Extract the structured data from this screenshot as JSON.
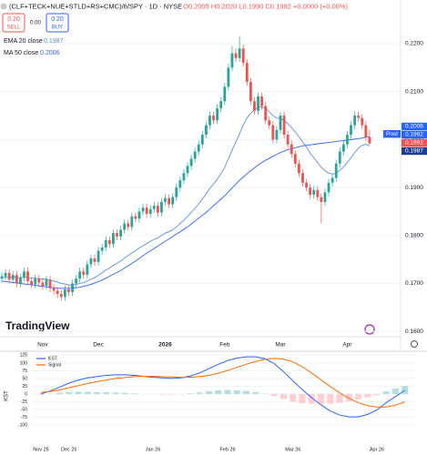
{
  "header": {
    "title": "(CLF+TECK+NUE+STLD+RS+CMC)/6/SPY · 1D · NYSE",
    "ohlc": "O0.2005 H0.2020 L0.1990 C0.1992 +0.0000 (+0.00%)",
    "sell_price": "0.20",
    "sell_label": "SELL",
    "spread": "0.00",
    "buy_price": "0.20",
    "buy_label": "BUY",
    "watermark": "TradingView",
    "price_badge": "Post"
  },
  "chart_data": [
    {
      "type": "candlestick",
      "categories": [
        null,
        null,
        null,
        null,
        null,
        null,
        null,
        null,
        null,
        null,
        null,
        "Nov",
        null,
        null,
        null,
        null,
        null,
        null,
        null,
        null,
        null,
        null,
        null,
        null,
        null,
        null,
        "Dec",
        null,
        null,
        null,
        null,
        null,
        null,
        null,
        null,
        null,
        null,
        null,
        null,
        null,
        null,
        null,
        null,
        null,
        "2026",
        null,
        null,
        null,
        null,
        null,
        null,
        null,
        null,
        null,
        null,
        null,
        null,
        null,
        null,
        null,
        "Feb",
        null,
        null,
        null,
        null,
        null,
        null,
        null,
        null,
        null,
        null,
        null,
        null,
        null,
        null,
        "Mar",
        null,
        null,
        null,
        null,
        null,
        null,
        null,
        null,
        null,
        null,
        null,
        null,
        null,
        null,
        null,
        null,
        null,
        "Apr",
        null,
        null,
        null,
        null,
        null,
        null
      ],
      "open": [
        0.171,
        0.1715,
        0.1722,
        0.1708,
        0.1718,
        0.17,
        0.1712,
        0.1725,
        0.1705,
        0.1698,
        0.171,
        0.1702,
        0.1695,
        0.1708,
        0.169,
        0.1685,
        0.1678,
        0.1672,
        0.1688,
        0.1682,
        0.17,
        0.171,
        0.1725,
        0.1718,
        0.174,
        0.1752,
        0.1745,
        0.1768,
        0.1775,
        0.179,
        0.1782,
        0.1805,
        0.1798,
        0.1812,
        0.1825,
        0.1818,
        0.184,
        0.1835,
        0.185,
        0.1858,
        0.1845,
        0.1855,
        0.1862,
        0.1848,
        0.187,
        0.1878,
        0.1865,
        0.188,
        0.19,
        0.1915,
        0.193,
        0.1945,
        0.196,
        0.1975,
        0.199,
        0.201,
        0.203,
        0.205,
        0.204,
        0.2065,
        0.208,
        0.211,
        0.215,
        0.218,
        0.217,
        0.219,
        0.216,
        0.212,
        0.208,
        0.206,
        0.209,
        0.207,
        0.204,
        0.203,
        0.2,
        0.202,
        0.205,
        0.201,
        0.199,
        0.197,
        0.195,
        0.193,
        0.191,
        0.19,
        0.1885,
        0.1895,
        0.188,
        0.187,
        0.189,
        0.191,
        0.192,
        0.195,
        0.1975,
        0.199,
        0.201,
        0.203,
        0.205,
        0.2045,
        0.203,
        0.2005
      ],
      "high": [
        0.1723,
        0.173,
        0.173,
        0.1726,
        0.1726,
        0.172,
        0.1733,
        0.1733,
        0.1713,
        0.1718,
        0.1718,
        0.171,
        0.1716,
        0.1716,
        0.1698,
        0.1693,
        0.1686,
        0.1696,
        0.1696,
        0.1708,
        0.1718,
        0.1733,
        0.1733,
        0.1748,
        0.176,
        0.176,
        0.1776,
        0.1783,
        0.1798,
        0.1798,
        0.1813,
        0.1813,
        0.182,
        0.1833,
        0.1833,
        0.1848,
        0.1848,
        0.1858,
        0.1866,
        0.1866,
        0.1863,
        0.187,
        0.187,
        0.1878,
        0.1886,
        0.1886,
        0.1888,
        0.1908,
        0.1923,
        0.1938,
        0.1953,
        0.1968,
        0.1983,
        0.1998,
        0.2018,
        0.2038,
        0.2058,
        0.2058,
        0.2073,
        0.2088,
        0.2118,
        0.2158,
        0.2195,
        0.219,
        0.2215,
        0.2198,
        0.2168,
        0.2128,
        0.2088,
        0.2098,
        0.2098,
        0.2078,
        0.2048,
        0.2038,
        0.2028,
        0.2058,
        0.2058,
        0.2018,
        0.1998,
        0.1978,
        0.1958,
        0.1938,
        0.1918,
        0.1908,
        0.1903,
        0.1903,
        0.1888,
        0.1898,
        0.1918,
        0.1928,
        0.1958,
        0.1983,
        0.1998,
        0.2018,
        0.2038,
        0.206,
        0.2058,
        0.2053,
        0.2038,
        0.202
      ],
      "low": [
        0.1702,
        0.1707,
        0.17,
        0.17,
        0.1692,
        0.1692,
        0.1704,
        0.1697,
        0.169,
        0.169,
        0.1694,
        0.1687,
        0.1687,
        0.1682,
        0.1677,
        0.167,
        0.1664,
        0.1664,
        0.1674,
        0.1674,
        0.1692,
        0.1702,
        0.171,
        0.171,
        0.1732,
        0.1737,
        0.1737,
        0.176,
        0.1767,
        0.1774,
        0.1774,
        0.179,
        0.179,
        0.1804,
        0.181,
        0.181,
        0.1827,
        0.1827,
        0.1842,
        0.1837,
        0.1837,
        0.1847,
        0.184,
        0.184,
        0.1862,
        0.1857,
        0.1857,
        0.1872,
        0.1892,
        0.1907,
        0.1922,
        0.1937,
        0.1952,
        0.1967,
        0.1982,
        0.2002,
        0.2022,
        0.2032,
        0.2032,
        0.2057,
        0.2072,
        0.2102,
        0.2142,
        0.2162,
        0.2162,
        0.2152,
        0.2112,
        0.2072,
        0.2052,
        0.2052,
        0.2062,
        0.2032,
        0.2022,
        0.1992,
        0.1992,
        0.2012,
        0.2002,
        0.1982,
        0.1962,
        0.1942,
        0.1922,
        0.1902,
        0.1892,
        0.1877,
        0.1877,
        0.1872,
        0.1825,
        0.1862,
        0.1882,
        0.1902,
        0.1912,
        0.1942,
        0.1967,
        0.1982,
        0.2002,
        0.2022,
        0.2037,
        0.2022,
        0.1997,
        0.199
      ],
      "close": [
        0.1715,
        0.1722,
        0.1708,
        0.1718,
        0.17,
        0.1712,
        0.1725,
        0.1705,
        0.1698,
        0.171,
        0.1702,
        0.1695,
        0.1708,
        0.169,
        0.1685,
        0.1678,
        0.1672,
        0.1688,
        0.1682,
        0.17,
        0.171,
        0.1725,
        0.1718,
        0.174,
        0.1752,
        0.1745,
        0.1768,
        0.1775,
        0.179,
        0.1782,
        0.1805,
        0.1798,
        0.1812,
        0.1825,
        0.1818,
        0.184,
        0.1835,
        0.185,
        0.1858,
        0.1845,
        0.1855,
        0.1862,
        0.1848,
        0.187,
        0.1878,
        0.1865,
        0.188,
        0.19,
        0.1915,
        0.193,
        0.1945,
        0.196,
        0.1975,
        0.199,
        0.201,
        0.203,
        0.205,
        0.204,
        0.2065,
        0.208,
        0.211,
        0.215,
        0.218,
        0.217,
        0.219,
        0.216,
        0.212,
        0.208,
        0.206,
        0.209,
        0.207,
        0.204,
        0.203,
        0.2,
        0.202,
        0.205,
        0.201,
        0.199,
        0.197,
        0.195,
        0.193,
        0.191,
        0.19,
        0.1885,
        0.1895,
        0.188,
        0.187,
        0.189,
        0.191,
        0.192,
        0.195,
        0.1975,
        0.199,
        0.201,
        0.203,
        0.205,
        0.2045,
        0.203,
        0.2005,
        0.1992
      ],
      "up_color": "#26a69a",
      "down_color": "#ef5350",
      "series": [
        {
          "name": "EMA 20 close",
          "color": "#5b8fd8",
          "values": [
            0.1712,
            0.1713,
            0.1713,
            0.1714,
            0.1712,
            0.1712,
            0.1713,
            0.1712,
            0.1711,
            0.1711,
            0.171,
            0.1709,
            0.1709,
            0.1707,
            0.1705,
            0.1703,
            0.17,
            0.1699,
            0.1697,
            0.1697,
            0.1698,
            0.17,
            0.1702,
            0.1705,
            0.1709,
            0.1712,
            0.1717,
            0.1722,
            0.1728,
            0.1732,
            0.1738,
            0.1742,
            0.1747,
            0.1753,
            0.1758,
            0.1764,
            0.1768,
            0.1774,
            0.1779,
            0.1783,
            0.1788,
            0.1792,
            0.1795,
            0.18,
            0.1805,
            0.1808,
            0.1812,
            0.1818,
            0.1825,
            0.1832,
            0.184,
            0.1848,
            0.1857,
            0.1866,
            0.1876,
            0.1887,
            0.1898,
            0.1907,
            0.1918,
            0.1929,
            0.1942,
            0.196,
            0.1978,
            0.1995,
            0.2012,
            0.203,
            0.2045,
            0.2055,
            0.2062,
            0.2068,
            0.2068,
            0.2065,
            0.2058,
            0.205,
            0.2045,
            0.2044,
            0.204,
            0.2033,
            0.2025,
            0.2016,
            0.2006,
            0.1995,
            0.1984,
            0.1972,
            0.1962,
            0.1952,
            0.1942,
            0.1935,
            0.193,
            0.1928,
            0.193,
            0.1936,
            0.1943,
            0.1952,
            0.1962,
            0.1973,
            0.1982,
            0.1988,
            0.199,
            0.1987
          ]
        },
        {
          "name": "MA 50 close",
          "color": "#2962ff",
          "values": [
            0.1705,
            0.1704,
            0.1703,
            0.1702,
            0.1701,
            0.17,
            0.1699,
            0.1698,
            0.1697,
            0.1696,
            0.1695,
            0.1694,
            0.1693,
            0.1692,
            0.1691,
            0.169,
            0.169,
            0.169,
            0.169,
            0.169,
            0.1691,
            0.1692,
            0.1694,
            0.1696,
            0.1698,
            0.1701,
            0.1704,
            0.1707,
            0.1711,
            0.1715,
            0.1719,
            0.1723,
            0.1727,
            0.1732,
            0.1737,
            0.1742,
            0.1747,
            0.1752,
            0.1758,
            0.1763,
            0.1768,
            0.1773,
            0.1778,
            0.1783,
            0.1788,
            0.1793,
            0.1798,
            0.1803,
            0.1808,
            0.1813,
            0.1818,
            0.1824,
            0.183,
            0.1836,
            0.1842,
            0.1848,
            0.1855,
            0.1862,
            0.1869,
            0.1876,
            0.1883,
            0.1891,
            0.1899,
            0.1907,
            0.1915,
            0.1922,
            0.1929,
            0.1935,
            0.1941,
            0.1947,
            0.1952,
            0.1957,
            0.1961,
            0.1965,
            0.1969,
            0.1973,
            0.1976,
            0.1979,
            0.1981,
            0.1983,
            0.1985,
            0.1987,
            0.1988,
            0.1989,
            0.199,
            0.1991,
            0.1992,
            0.1993,
            0.1994,
            0.1995,
            0.1996,
            0.1997,
            0.1998,
            0.1999,
            0.2,
            0.2001,
            0.2002,
            0.2003,
            0.2005,
            0.2006
          ]
        }
      ],
      "price_labels": [
        {
          "value": 0.2006,
          "color": "#2962ff"
        },
        {
          "value": 0.1992,
          "color": "#2962ff"
        },
        {
          "value": 0.1992,
          "color": "#ef5350"
        },
        {
          "value": 0.1987,
          "color": "#1e3f8f"
        }
      ],
      "ylim": [
        0.1589,
        0.2291
      ],
      "yticks": [
        {
          "value": 0.22,
          "label": "0.2200"
        },
        {
          "value": 0.21,
          "label": "0.2100"
        },
        {
          "value": 0.2,
          "label": "0.2000"
        },
        {
          "value": 0.19,
          "label": "0.1900"
        },
        {
          "value": 0.18,
          "label": "0.1800"
        },
        {
          "value": 0.17,
          "label": "0.1700"
        },
        {
          "value": 0.16,
          "label": "0.1600"
        }
      ]
    },
    {
      "type": "line",
      "ylabel": "KST",
      "categories": [
        "Nov 25",
        null,
        null,
        "Dec 25",
        null,
        null,
        null,
        null,
        null,
        null,
        null,
        null,
        "Jan 26",
        null,
        null,
        null,
        null,
        null,
        null,
        null,
        "Feb 26",
        null,
        null,
        null,
        null,
        null,
        null,
        "Mar 26",
        null,
        null,
        null,
        null,
        null,
        null,
        null,
        null,
        "Apr 26",
        null,
        null,
        null
      ],
      "series": [
        {
          "name": "KST",
          "color": "#2962ff",
          "values": [
            0,
            10,
            22,
            35,
            45,
            52,
            56,
            60,
            62,
            62,
            60,
            57,
            54,
            52,
            50,
            52,
            58,
            68,
            82,
            96,
            108,
            116,
            120,
            120,
            114,
            98,
            72,
            42,
            14,
            -12,
            -35,
            -55,
            -68,
            -74,
            -74,
            -66,
            -52,
            -28,
            -8,
            12
          ]
        },
        {
          "name": "Signal",
          "color": "#ff6d00",
          "values": [
            5,
            8,
            13,
            20,
            27,
            34,
            40,
            45,
            50,
            53,
            56,
            57,
            57,
            56,
            55,
            54,
            54,
            56,
            60,
            67,
            76,
            86,
            96,
            105,
            112,
            115,
            113,
            104,
            88,
            68,
            46,
            24,
            4,
            -14,
            -28,
            -38,
            -42,
            -42,
            -36,
            -26
          ]
        }
      ],
      "histogram": [
        -2,
        1,
        4,
        6,
        7,
        7,
        6,
        6,
        5,
        4,
        2,
        0,
        -1,
        -2,
        -2,
        -1,
        2,
        5,
        9,
        12,
        13,
        12,
        10,
        6,
        1,
        -7,
        -16,
        -25,
        -30,
        -32,
        -32,
        -31,
        -29,
        -24,
        -18,
        -11,
        -4,
        8,
        18,
        26
      ],
      "histogram_colors": {
        "positive": "#b2dfdb",
        "negative": "#ffcdd2"
      },
      "ylim": [
        -156,
        138
      ],
      "yticks": [
        125,
        100,
        75,
        50,
        25,
        0,
        -25,
        -50,
        -75,
        -100
      ]
    }
  ]
}
